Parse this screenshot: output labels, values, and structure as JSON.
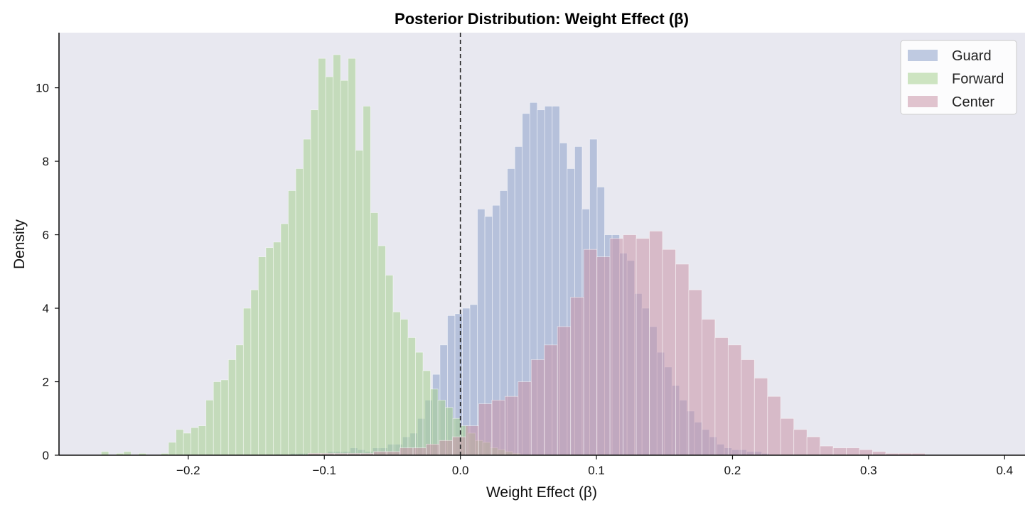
{
  "chart_data": {
    "type": "histogram",
    "title": "Posterior Distribution: Weight Effect (β)",
    "xlabel": "Weight Effect (β)",
    "ylabel": "Density",
    "xlim": [
      -0.295,
      0.415
    ],
    "ylim": [
      0,
      11.5
    ],
    "x_ticks": [
      -0.2,
      -0.1,
      0.0,
      0.1,
      0.2,
      0.3,
      0.4
    ],
    "x_tick_labels": [
      "−0.2",
      "−0.1",
      "0.0",
      "0.1",
      "0.2",
      "0.3",
      "0.4"
    ],
    "y_ticks": [
      0,
      2,
      4,
      6,
      8,
      10
    ],
    "y_tick_labels": [
      "0",
      "2",
      "4",
      "6",
      "8",
      "10"
    ],
    "reference_line": {
      "x": 0.0,
      "style": "dashed",
      "color": "#222222"
    },
    "grid": false,
    "legend_placement": "top-right",
    "background_color": "#e8e8f0",
    "series": [
      {
        "name": "Guard",
        "color": "#8da0cb",
        "opacity": 0.55,
        "bin_start": -0.136,
        "bin_width": 0.0055,
        "values": [
          0.03,
          0.0,
          0.05,
          0.05,
          0.05,
          0.05,
          0.05,
          0.1,
          0.1,
          0.1,
          0.2,
          0.15,
          0.1,
          0.2,
          0.2,
          0.3,
          0.3,
          0.5,
          0.6,
          1.0,
          1.5,
          2.2,
          3.0,
          3.8,
          3.85,
          4.0,
          4.1,
          6.7,
          6.5,
          6.8,
          7.2,
          7.8,
          8.4,
          9.3,
          9.6,
          9.4,
          9.5,
          9.5,
          8.5,
          7.8,
          8.4,
          6.7,
          8.6,
          7.3,
          6.0,
          6.0,
          5.5,
          5.3,
          4.4,
          4.0,
          3.5,
          2.8,
          2.4,
          1.9,
          1.5,
          1.2,
          0.9,
          0.7,
          0.5,
          0.3,
          0.2,
          0.15,
          0.15,
          0.1,
          0.1,
          0.05
        ]
      },
      {
        "name": "Forward",
        "color": "#a6cf8f",
        "opacity": 0.55,
        "bin_start": -0.264,
        "bin_width": 0.0055,
        "values": [
          0.1,
          0.0,
          0.05,
          0.1,
          0.0,
          0.05,
          0.0,
          0.0,
          0.05,
          0.35,
          0.7,
          0.6,
          0.75,
          0.8,
          1.5,
          2.0,
          2.05,
          2.6,
          3.0,
          4.0,
          4.5,
          5.4,
          5.65,
          5.8,
          6.3,
          7.2,
          7.8,
          8.6,
          9.4,
          10.8,
          10.3,
          10.9,
          10.2,
          10.8,
          8.3,
          9.5,
          6.6,
          5.7,
          4.9,
          3.9,
          3.7,
          3.2,
          2.8,
          2.3,
          1.8,
          1.5,
          1.3,
          1.0,
          0.8,
          0.6,
          0.4,
          0.35,
          0.2,
          0.15,
          0.1,
          0.05
        ]
      },
      {
        "name": "Center",
        "color": "#c994a7",
        "opacity": 0.55,
        "bin_start": -0.112,
        "bin_width": 0.00965,
        "values": [
          0.05,
          0.05,
          0.05,
          0.05,
          0.05,
          0.1,
          0.1,
          0.2,
          0.2,
          0.3,
          0.4,
          0.5,
          0.8,
          1.4,
          1.5,
          1.6,
          2.0,
          2.6,
          3.0,
          3.5,
          4.3,
          5.6,
          5.4,
          5.9,
          6.0,
          5.9,
          6.1,
          5.6,
          5.2,
          4.5,
          3.7,
          3.2,
          3.0,
          2.6,
          2.1,
          1.6,
          1.0,
          0.7,
          0.5,
          0.25,
          0.2,
          0.2,
          0.15,
          0.1,
          0.05,
          0.05,
          0.05,
          0.0
        ]
      }
    ]
  }
}
